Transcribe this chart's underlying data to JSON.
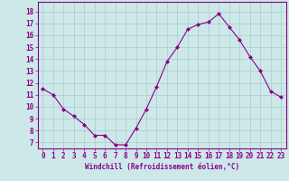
{
  "x": [
    0,
    1,
    2,
    3,
    4,
    5,
    6,
    7,
    8,
    9,
    10,
    11,
    12,
    13,
    14,
    15,
    16,
    17,
    18,
    19,
    20,
    21,
    22,
    23
  ],
  "y": [
    11.5,
    11.0,
    9.8,
    9.2,
    8.5,
    7.6,
    7.6,
    6.8,
    6.8,
    8.2,
    9.8,
    11.7,
    13.8,
    15.0,
    16.5,
    16.9,
    17.1,
    17.8,
    16.7,
    15.6,
    14.2,
    13.0,
    11.3,
    10.8
  ],
  "line_color": "#8B008B",
  "marker": "D",
  "marker_size": 2,
  "bg_color": "#cce8e8",
  "grid_color": "#aacccc",
  "xlabel": "Windchill (Refroidissement éolien,°C)",
  "xlabel_fontsize": 5.5,
  "ytick_labels": [
    "7",
    "8",
    "9",
    "10",
    "11",
    "12",
    "13",
    "14",
    "15",
    "16",
    "17",
    "18"
  ],
  "ytick_values": [
    7,
    8,
    9,
    10,
    11,
    12,
    13,
    14,
    15,
    16,
    17,
    18
  ],
  "ylim": [
    6.5,
    18.8
  ],
  "xlim": [
    -0.5,
    23.5
  ],
  "tick_fontsize": 5.5
}
